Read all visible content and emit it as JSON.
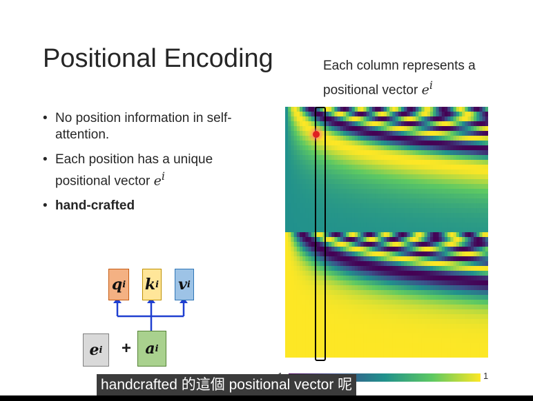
{
  "slide": {
    "title": "Positional Encoding",
    "caption_line1": "Each column represents a",
    "caption_line2_text": "positional vector ",
    "caption_line2_math": "e",
    "caption_line2_sup": "i",
    "bullets": [
      {
        "text": "No position information in self-attention."
      },
      {
        "text": "Each position has a unique positional vector ",
        "math": "e",
        "sup": "i"
      },
      {
        "text": "hand-crafted",
        "bold": true
      }
    ],
    "diagram": {
      "q_label": "q",
      "k_label": "k",
      "v_label": "v",
      "e_label": "e",
      "a_label": "a",
      "sup": "i",
      "plus": "+",
      "colors": {
        "q": "#f4b183",
        "k": "#ffe699",
        "v": "#9dc3e6",
        "e": "#d9d9d9",
        "a": "#a9d18e",
        "arrow": "#1f3fd0"
      }
    },
    "colorbar": {
      "min_label": "-1",
      "max_label": "1"
    }
  },
  "subtitle": "handcrafted 的這個 positional vector 呢"
}
